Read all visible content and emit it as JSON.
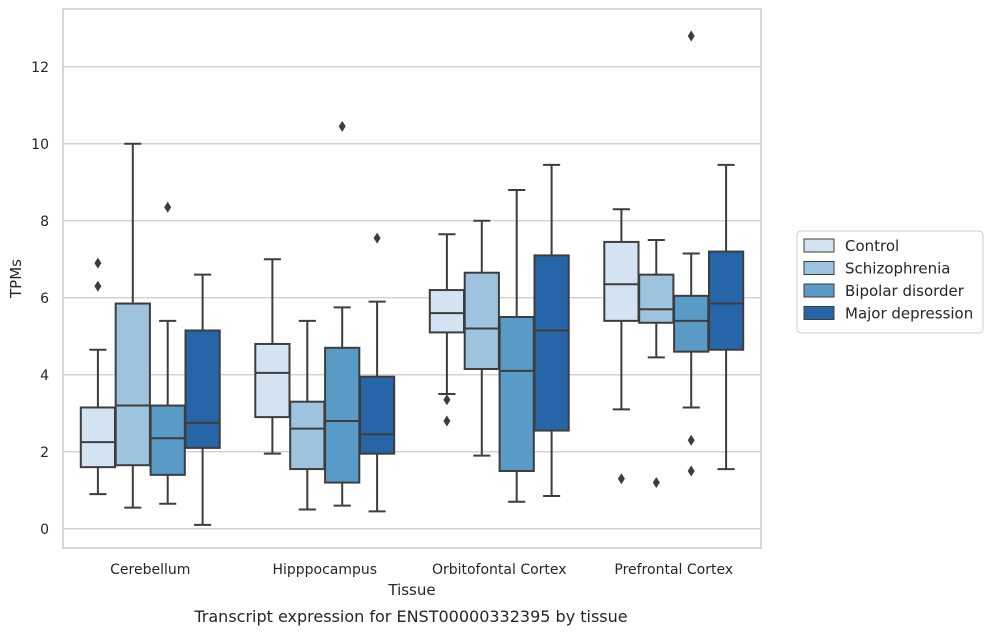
{
  "chart_data": {
    "type": "boxplot",
    "title": "",
    "caption": "Transcript expression for ENST00000332395 by tissue",
    "xlabel": "Tissue",
    "ylabel": "TPMs",
    "ylim": [
      -0.5,
      13.5
    ],
    "yticks": [
      0,
      2,
      4,
      6,
      8,
      10,
      12
    ],
    "grid": "horizontal",
    "legend_position": "right",
    "categories": [
      "Cerebellum",
      "Hipppocampus",
      "Orbitofontal Cortex",
      "Prefrontal Cortex"
    ],
    "series": [
      {
        "name": "Control",
        "color": "#d3e3f2",
        "boxes": [
          {
            "whislo": 0.9,
            "q1": 1.6,
            "med": 2.25,
            "q3": 3.15,
            "whishi": 4.65,
            "fliers": [
              6.3,
              6.9
            ]
          },
          {
            "whislo": 1.95,
            "q1": 2.9,
            "med": 4.05,
            "q3": 4.8,
            "whishi": 7.0,
            "fliers": []
          },
          {
            "whislo": 3.5,
            "q1": 5.1,
            "med": 5.6,
            "q3": 6.2,
            "whishi": 7.65,
            "fliers": [
              3.35,
              2.8
            ]
          },
          {
            "whislo": 3.1,
            "q1": 5.4,
            "med": 6.35,
            "q3": 7.45,
            "whishi": 8.3,
            "fliers": [
              1.3
            ]
          }
        ]
      },
      {
        "name": "Schizophrenia",
        "color": "#9dc3de",
        "boxes": [
          {
            "whislo": 0.55,
            "q1": 1.65,
            "med": 3.2,
            "q3": 5.85,
            "whishi": 10.0,
            "fliers": []
          },
          {
            "whislo": 0.5,
            "q1": 1.55,
            "med": 2.6,
            "q3": 3.3,
            "whishi": 5.4,
            "fliers": []
          },
          {
            "whislo": 1.9,
            "q1": 4.15,
            "med": 5.2,
            "q3": 6.65,
            "whishi": 8.0,
            "fliers": []
          },
          {
            "whislo": 4.45,
            "q1": 5.35,
            "med": 5.7,
            "q3": 6.6,
            "whishi": 7.5,
            "fliers": [
              1.2
            ]
          }
        ]
      },
      {
        "name": "Bipolar disorder",
        "color": "#5a9ac6",
        "boxes": [
          {
            "whislo": 0.65,
            "q1": 1.4,
            "med": 2.35,
            "q3": 3.2,
            "whishi": 5.4,
            "fliers": [
              8.35
            ]
          },
          {
            "whislo": 0.6,
            "q1": 1.2,
            "med": 2.8,
            "q3": 4.7,
            "whishi": 5.75,
            "fliers": [
              10.45
            ]
          },
          {
            "whislo": 0.7,
            "q1": 1.5,
            "med": 4.1,
            "q3": 5.5,
            "whishi": 8.8,
            "fliers": []
          },
          {
            "whislo": 3.15,
            "q1": 4.6,
            "med": 5.4,
            "q3": 6.05,
            "whishi": 7.15,
            "fliers": [
              2.3,
              1.5,
              12.8
            ]
          }
        ]
      },
      {
        "name": "Major depression",
        "color": "#2765a9",
        "boxes": [
          {
            "whislo": 0.1,
            "q1": 2.1,
            "med": 2.75,
            "q3": 5.15,
            "whishi": 6.6,
            "fliers": []
          },
          {
            "whislo": 0.45,
            "q1": 1.95,
            "med": 2.45,
            "q3": 3.95,
            "whishi": 5.9,
            "fliers": [
              7.55
            ]
          },
          {
            "whislo": 0.85,
            "q1": 2.55,
            "med": 5.15,
            "q3": 7.1,
            "whishi": 9.45,
            "fliers": []
          },
          {
            "whislo": 1.55,
            "q1": 4.65,
            "med": 5.85,
            "q3": 7.2,
            "whishi": 9.45,
            "fliers": []
          }
        ]
      }
    ]
  }
}
